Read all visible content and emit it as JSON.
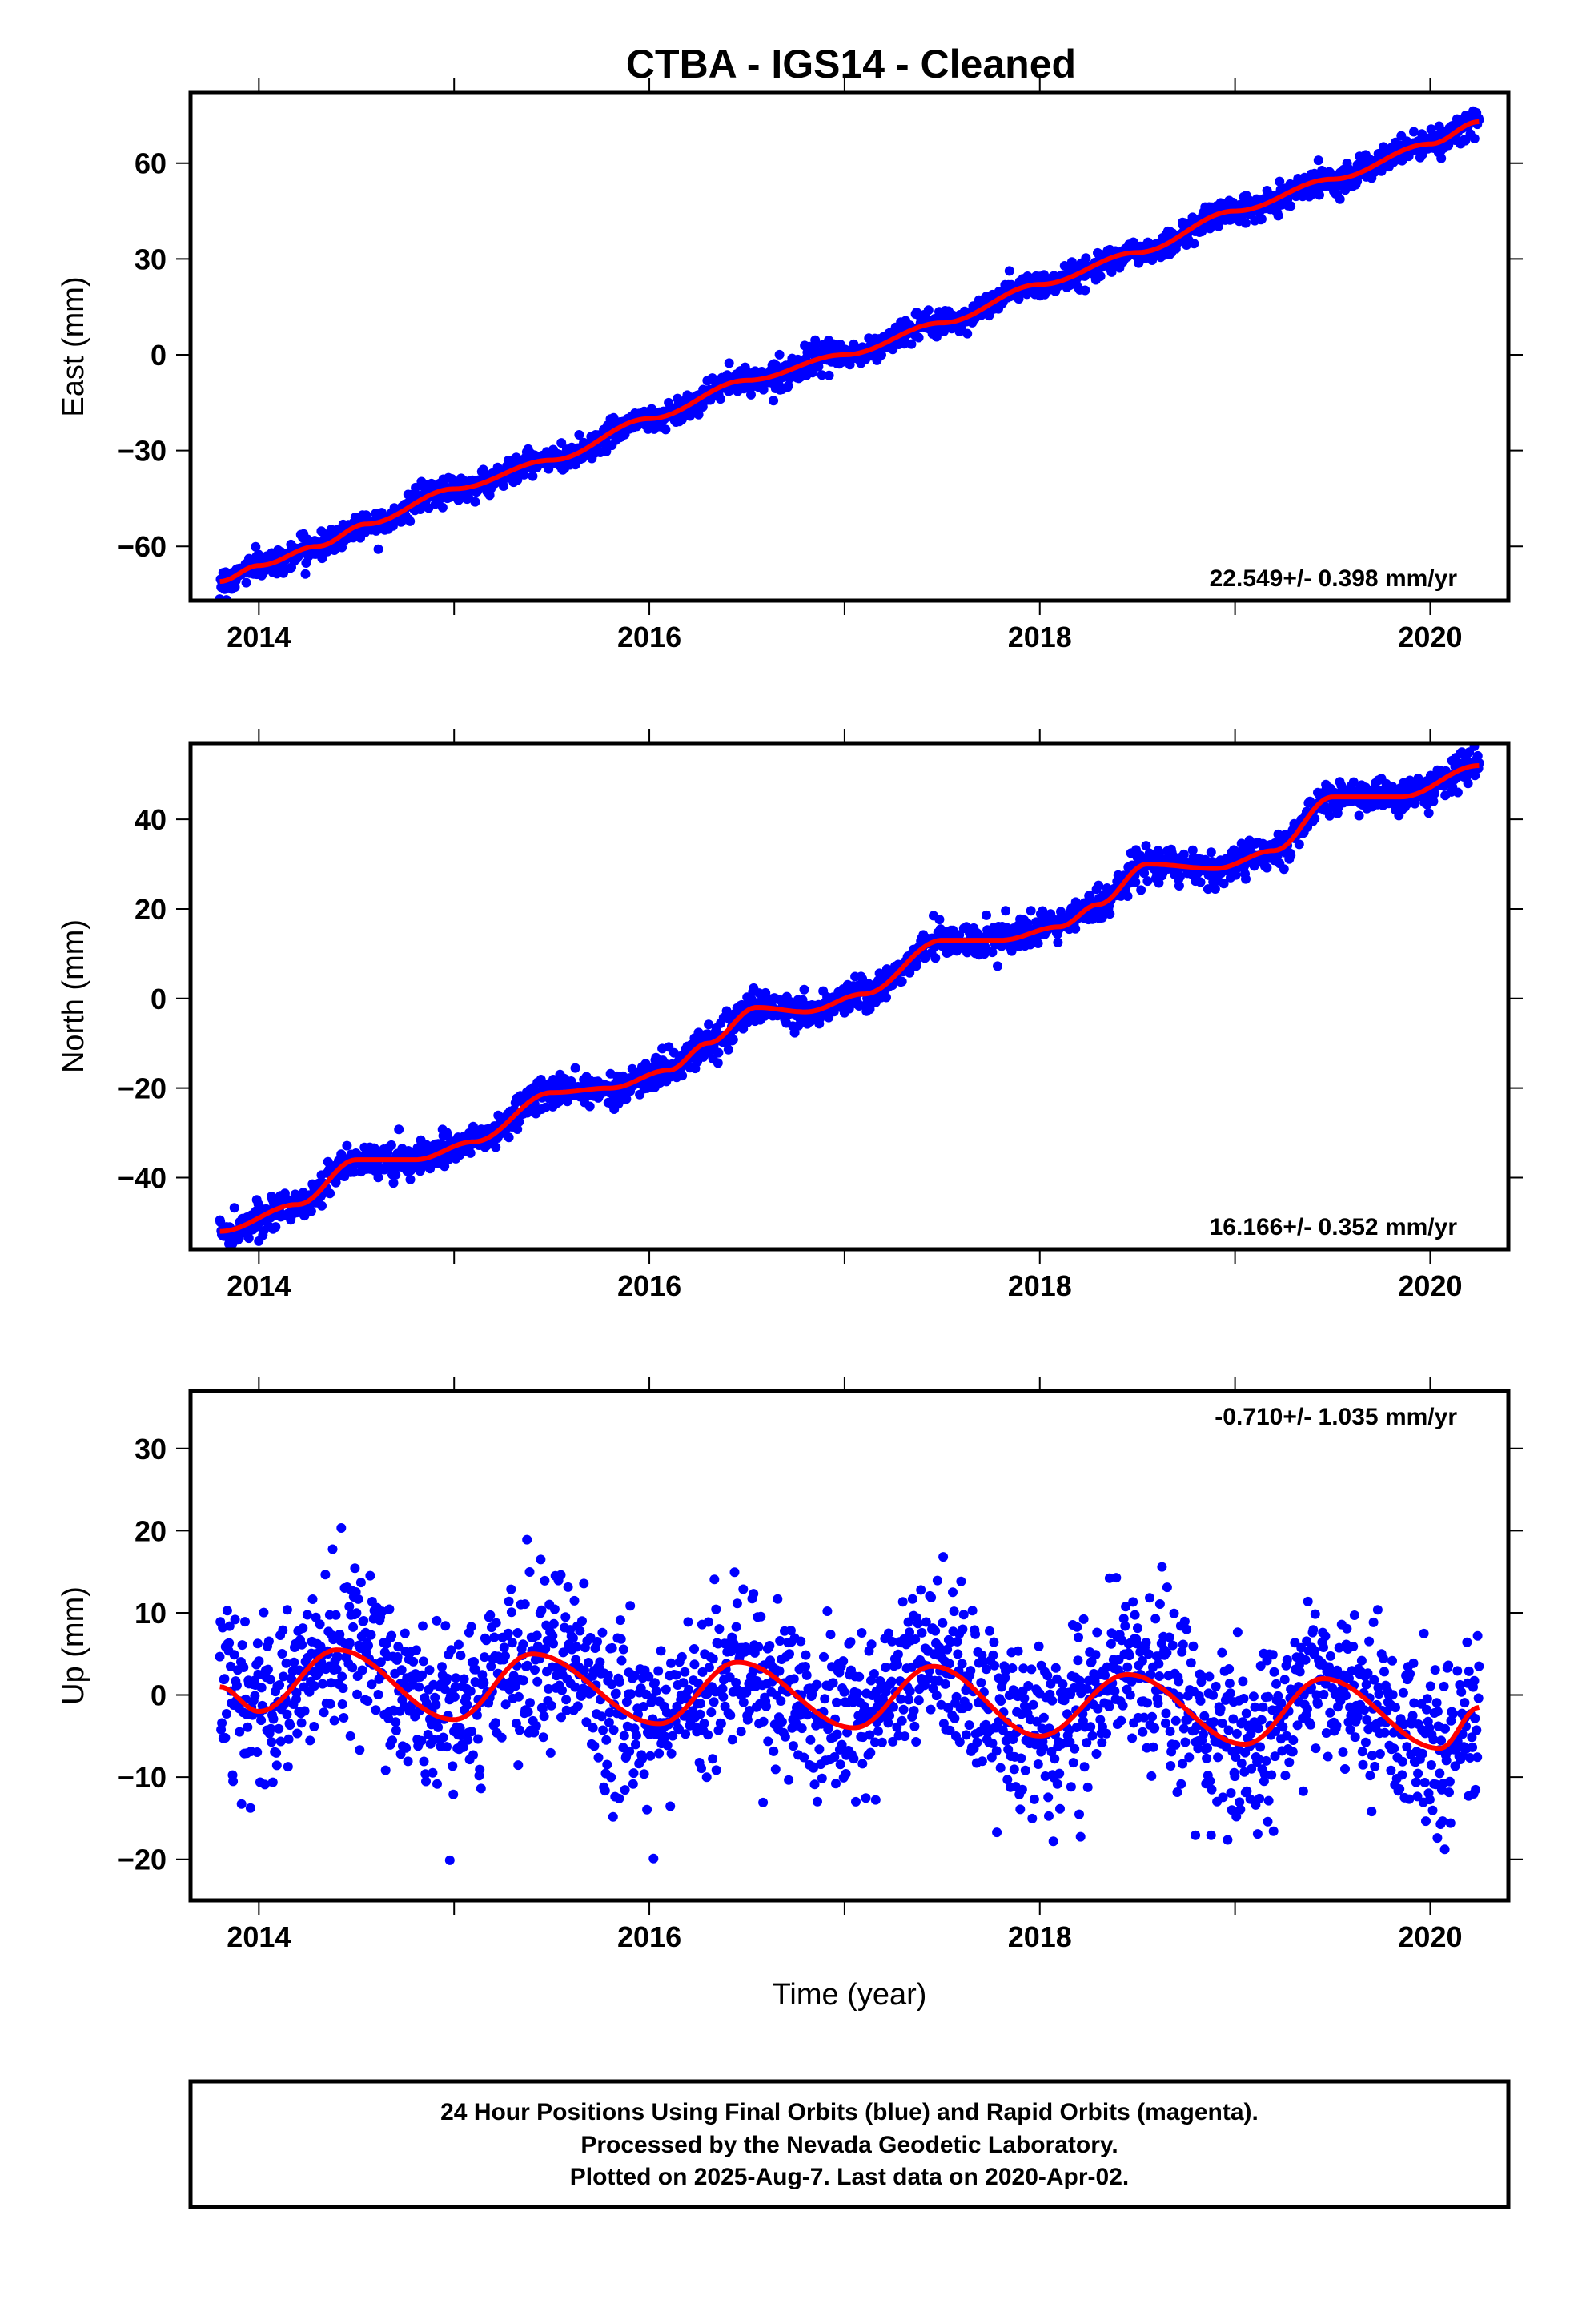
{
  "title": "CTBA  - IGS14 - Cleaned",
  "colors": {
    "final_orbits": "#0000ff",
    "trend": "#ff0000"
  },
  "footer": {
    "line1": "24 Hour Positions Using Final Orbits (blue) and Rapid Orbits (magenta).",
    "line2": "Processed by the Nevada Geodetic Laboratory.",
    "line3": "Plotted on 2025-Aug-7. Last data on 2020-Apr-02."
  },
  "chart_data": [
    {
      "type": "scatter",
      "ylabel": "East (mm)",
      "xlabel": "",
      "xlim": [
        2013.65,
        2020.4
      ],
      "ylim": [
        -77,
        82
      ],
      "x_ticks": [
        2014,
        2016,
        2018,
        2020
      ],
      "x_minor_ticks": [
        2015,
        2017,
        2019
      ],
      "y_ticks": [
        -60,
        -30,
        0,
        30,
        60
      ],
      "rate": "22.549+/- 0.398 mm/yr",
      "rate_position": "bottom-right",
      "grid": false,
      "series": [
        {
          "color": "#0000ff",
          "style": "points",
          "x_range": [
            2013.8,
            2020.25
          ]
        },
        {
          "color": "#ff0000",
          "style": "line",
          "x": [
            2013.8,
            2014.0,
            2014.3,
            2014.55,
            2015.0,
            2015.5,
            2016.0,
            2016.5,
            2017.0,
            2017.5,
            2018.0,
            2018.5,
            2019.0,
            2019.5,
            2020.0,
            2020.25
          ],
          "y": [
            -71,
            -66,
            -60,
            -53,
            -42,
            -33,
            -20,
            -8,
            0,
            10,
            22,
            32,
            45,
            55,
            66,
            73
          ]
        }
      ]
    },
    {
      "type": "scatter",
      "ylabel": "North (mm)",
      "xlabel": "",
      "xlim": [
        2013.65,
        2020.4
      ],
      "ylim": [
        -56,
        57
      ],
      "x_ticks": [
        2014,
        2016,
        2018,
        2020
      ],
      "x_minor_ticks": [
        2015,
        2017,
        2019
      ],
      "y_ticks": [
        -40,
        -20,
        0,
        20,
        40
      ],
      "rate": "16.166+/- 0.352 mm/yr",
      "rate_position": "bottom-right",
      "grid": false,
      "series": [
        {
          "color": "#0000ff",
          "style": "points",
          "x_range": [
            2013.8,
            2020.25
          ]
        },
        {
          "color": "#ff0000",
          "style": "line",
          "x": [
            2013.8,
            2014.2,
            2014.5,
            2014.8,
            2015.1,
            2015.5,
            2015.8,
            2016.1,
            2016.3,
            2016.55,
            2016.8,
            2017.1,
            2017.5,
            2017.8,
            2018.1,
            2018.3,
            2018.55,
            2018.9,
            2019.2,
            2019.5,
            2019.85,
            2020.25
          ],
          "y": [
            -52,
            -46,
            -36,
            -36,
            -32,
            -21,
            -20,
            -16,
            -10,
            -2,
            -3,
            1,
            13,
            13,
            16,
            21,
            30,
            29,
            33,
            45,
            45,
            52
          ]
        }
      ]
    },
    {
      "type": "scatter",
      "ylabel": "Up (mm)",
      "xlabel": "Time (year)",
      "xlim": [
        2013.65,
        2020.4
      ],
      "ylim": [
        -25,
        37
      ],
      "x_ticks": [
        2014,
        2016,
        2018,
        2020
      ],
      "x_minor_ticks": [
        2015,
        2017,
        2019
      ],
      "y_ticks": [
        -20,
        -10,
        0,
        10,
        20,
        30
      ],
      "rate": "-0.710+/- 1.035 mm/yr",
      "rate_position": "top-right",
      "grid": false,
      "series": [
        {
          "color": "#0000ff",
          "style": "points",
          "x_range": [
            2013.8,
            2020.25
          ]
        },
        {
          "color": "#ff0000",
          "style": "line",
          "x": [
            2013.8,
            2014.0,
            2014.4,
            2015.0,
            2015.4,
            2016.05,
            2016.45,
            2017.05,
            2017.45,
            2018.0,
            2018.45,
            2019.05,
            2019.45,
            2020.05,
            2020.25
          ],
          "y": [
            1,
            -2,
            5.5,
            -3,
            5,
            -3.5,
            4,
            -4,
            3.5,
            -5,
            2.5,
            -6,
            2,
            -6.5,
            -1.5
          ]
        }
      ]
    }
  ]
}
